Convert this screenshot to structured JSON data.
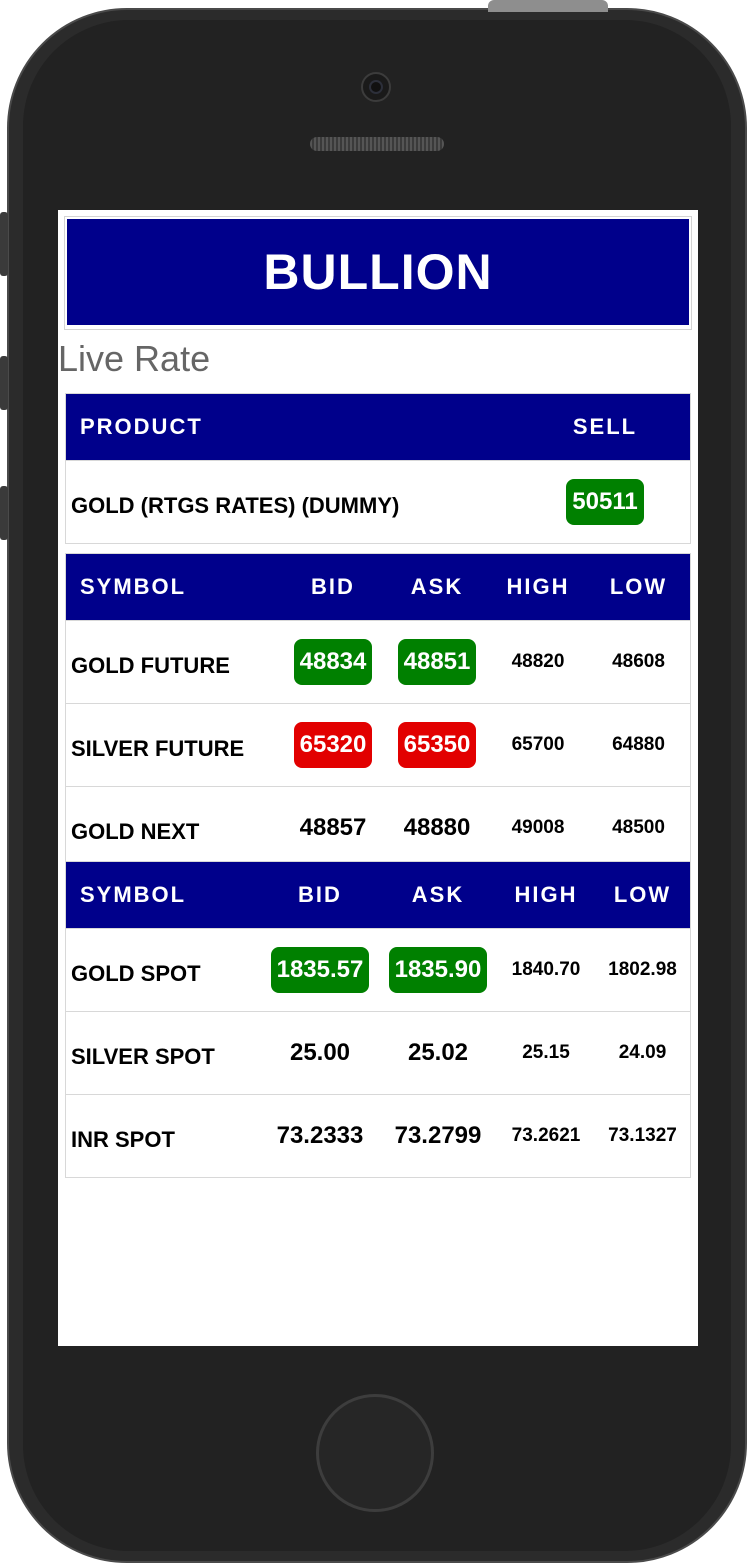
{
  "banner": {
    "title": "BULLION"
  },
  "section_title": "Live Rate",
  "colors": {
    "header_bg": "#00008b",
    "up": "#008000",
    "down": "#e20000"
  },
  "product_table": {
    "headers": [
      "PRODUCT",
      "SELL"
    ],
    "rows": [
      {
        "name": "GOLD (RTGS RATES) (DUMMY)",
        "sell": "50511",
        "sell_style": "green"
      }
    ]
  },
  "futures_table": {
    "headers": [
      "SYMBOL",
      "BID",
      "ASK",
      "HIGH",
      "LOW"
    ],
    "rows": [
      {
        "symbol": "GOLD FUTURE",
        "bid": "48834",
        "bid_style": "green",
        "ask": "48851",
        "ask_style": "green",
        "high": "48820",
        "low": "48608"
      },
      {
        "symbol": "SILVER FUTURE",
        "bid": "65320",
        "bid_style": "red",
        "ask": "65350",
        "ask_style": "red",
        "high": "65700",
        "low": "64880"
      },
      {
        "symbol": "GOLD NEXT",
        "bid": "48857",
        "bid_style": "plain",
        "ask": "48880",
        "ask_style": "plain",
        "high": "49008",
        "low": "48500"
      }
    ]
  },
  "spot_table": {
    "headers": [
      "SYMBOL",
      "BID",
      "ASK",
      "HIGH",
      "LOW"
    ],
    "rows": [
      {
        "symbol": "GOLD SPOT",
        "bid": "1835.57",
        "bid_style": "green",
        "ask": "1835.90",
        "ask_style": "green",
        "high": "1840.70",
        "low": "1802.98"
      },
      {
        "symbol": "SILVER SPOT",
        "bid": "25.00",
        "bid_style": "plain",
        "ask": "25.02",
        "ask_style": "plain",
        "high": "25.15",
        "low": "24.09"
      },
      {
        "symbol": "INR SPOT",
        "bid": "73.2333",
        "bid_style": "plain",
        "ask": "73.2799",
        "ask_style": "plain",
        "high": "73.2621",
        "low": "73.1327"
      }
    ]
  }
}
